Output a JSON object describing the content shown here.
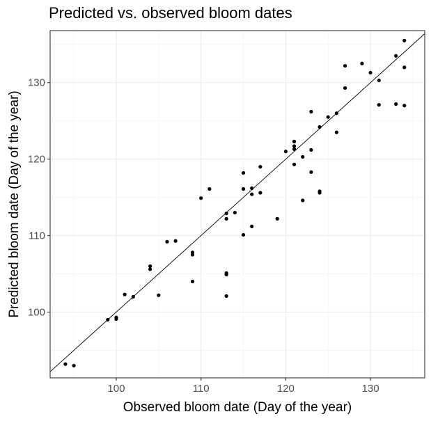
{
  "chart_data": {
    "type": "scatter",
    "title": "Predicted vs. observed bloom dates",
    "xlabel": "Observed bloom date (Day of the year)",
    "ylabel": "Predicted bloom date (Day of the year)",
    "xlim": [
      92.2,
      136.4
    ],
    "ylim": [
      91.4,
      136.8
    ],
    "xticks": [
      100,
      110,
      120,
      130
    ],
    "yticks": [
      100,
      110,
      120,
      130
    ],
    "grid": true,
    "reference_line": "y = x",
    "point_color": "#000000",
    "points": [
      {
        "x": 94,
        "y": 93.2
      },
      {
        "x": 95,
        "y": 93.0
      },
      {
        "x": 99,
        "y": 99.0
      },
      {
        "x": 100,
        "y": 99.3
      },
      {
        "x": 100,
        "y": 99.1
      },
      {
        "x": 101,
        "y": 102.3
      },
      {
        "x": 102,
        "y": 102.0
      },
      {
        "x": 104,
        "y": 106.0
      },
      {
        "x": 104,
        "y": 105.6
      },
      {
        "x": 105,
        "y": 102.2
      },
      {
        "x": 106,
        "y": 109.2
      },
      {
        "x": 107,
        "y": 109.3
      },
      {
        "x": 109,
        "y": 107.8
      },
      {
        "x": 109,
        "y": 107.5
      },
      {
        "x": 109,
        "y": 104.0
      },
      {
        "x": 110,
        "y": 114.9
      },
      {
        "x": 111,
        "y": 116.1
      },
      {
        "x": 113,
        "y": 112.9
      },
      {
        "x": 113,
        "y": 112.2
      },
      {
        "x": 113,
        "y": 105.1
      },
      {
        "x": 113,
        "y": 104.9
      },
      {
        "x": 113,
        "y": 102.1
      },
      {
        "x": 114,
        "y": 113.0
      },
      {
        "x": 115,
        "y": 118.2
      },
      {
        "x": 115,
        "y": 116.1
      },
      {
        "x": 115,
        "y": 110.1
      },
      {
        "x": 116,
        "y": 116.2
      },
      {
        "x": 116,
        "y": 115.4
      },
      {
        "x": 116,
        "y": 111.2
      },
      {
        "x": 117,
        "y": 119.0
      },
      {
        "x": 117,
        "y": 115.6
      },
      {
        "x": 119,
        "y": 112.2
      },
      {
        "x": 120,
        "y": 121.0
      },
      {
        "x": 121,
        "y": 122.3
      },
      {
        "x": 121,
        "y": 121.7
      },
      {
        "x": 121,
        "y": 121.3
      },
      {
        "x": 121,
        "y": 119.3
      },
      {
        "x": 122,
        "y": 120.3
      },
      {
        "x": 122,
        "y": 114.6
      },
      {
        "x": 123,
        "y": 126.2
      },
      {
        "x": 123,
        "y": 121.2
      },
      {
        "x": 123,
        "y": 118.3
      },
      {
        "x": 124,
        "y": 124.2
      },
      {
        "x": 124,
        "y": 115.8
      },
      {
        "x": 124,
        "y": 115.6
      },
      {
        "x": 125,
        "y": 125.5
      },
      {
        "x": 126,
        "y": 126.0
      },
      {
        "x": 126,
        "y": 123.5
      },
      {
        "x": 127,
        "y": 132.2
      },
      {
        "x": 127,
        "y": 129.3
      },
      {
        "x": 129,
        "y": 132.5
      },
      {
        "x": 130,
        "y": 131.3
      },
      {
        "x": 131,
        "y": 130.3
      },
      {
        "x": 131,
        "y": 127.1
      },
      {
        "x": 133,
        "y": 133.5
      },
      {
        "x": 133,
        "y": 127.2
      },
      {
        "x": 134,
        "y": 135.5
      },
      {
        "x": 134,
        "y": 132.0
      },
      {
        "x": 134,
        "y": 127.0
      }
    ]
  }
}
